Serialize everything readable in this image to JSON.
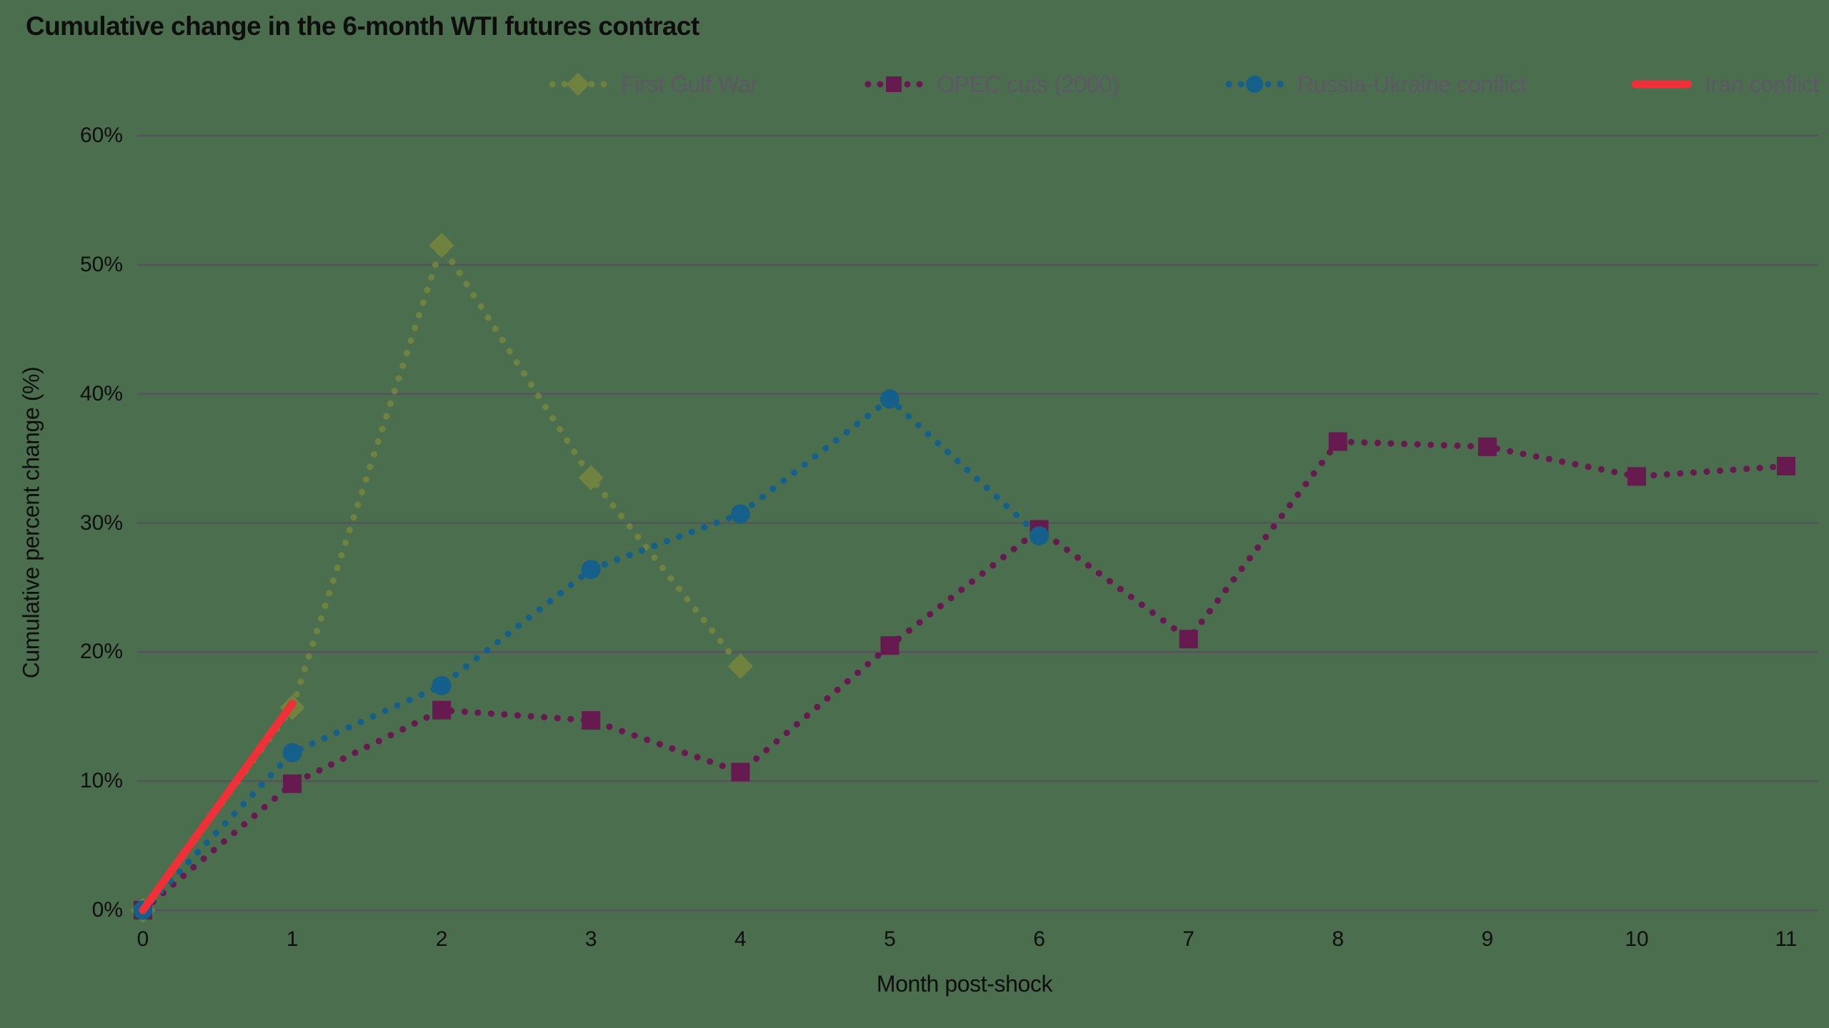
{
  "colors": {
    "background": "#4b6e4e",
    "gridline": "#57525f",
    "axis_text": "#0e0e0e",
    "legend_text": "#5e5765",
    "first_gulf_war": "#708240",
    "opec_cuts": "#661a50",
    "russia_ukraine": "#15608a",
    "iran_conflict": "#ee3138"
  },
  "chart_data": {
    "type": "line",
    "title": "Cumulative change in the 6-month WTI futures contract",
    "xlabel": "Month post-shock",
    "ylabel": "Cumulative percent change (%)",
    "xlim": [
      0,
      11
    ],
    "ylim": [
      0,
      60
    ],
    "x_ticks": [
      0,
      1,
      2,
      3,
      4,
      5,
      6,
      7,
      8,
      9,
      10,
      11
    ],
    "y_ticks": [
      {
        "value": 0,
        "label": "0%"
      },
      {
        "value": 10,
        "label": "10%"
      },
      {
        "value": 20,
        "label": "20%"
      },
      {
        "value": 30,
        "label": "30%"
      },
      {
        "value": 40,
        "label": "40%"
      },
      {
        "value": 50,
        "label": "50%"
      },
      {
        "value": 60,
        "label": "60%"
      }
    ],
    "grid": "horizontal-only",
    "legend_position": "top-right",
    "series": [
      {
        "name": "First Gulf War",
        "color": "#708240",
        "marker": "diamond",
        "line_style": "dotted",
        "x": [
          0,
          1,
          2,
          3,
          4
        ],
        "values": [
          0,
          15.7,
          51.5,
          33.5,
          18.9
        ]
      },
      {
        "name": "OPEC cuts (2000)",
        "color": "#661a50",
        "marker": "square",
        "line_style": "dotted",
        "x": [
          0,
          1,
          2,
          3,
          4,
          5,
          6,
          7,
          8,
          9,
          10,
          11
        ],
        "values": [
          0,
          9.8,
          15.5,
          14.7,
          10.7,
          20.5,
          29.5,
          21.0,
          36.3,
          35.9,
          33.6,
          34.4
        ]
      },
      {
        "name": "Russia-Ukraine conflict",
        "color": "#15608a",
        "marker": "circle",
        "line_style": "dotted",
        "x": [
          0,
          1,
          2,
          3,
          4,
          5,
          6
        ],
        "values": [
          0,
          12.2,
          17.4,
          26.4,
          30.7,
          39.6,
          29.0
        ]
      },
      {
        "name": "Iran conflict",
        "color": "#ee3138",
        "marker": "none",
        "line_style": "solid",
        "x": [
          0,
          1
        ],
        "values": [
          0,
          16.0
        ]
      }
    ]
  }
}
